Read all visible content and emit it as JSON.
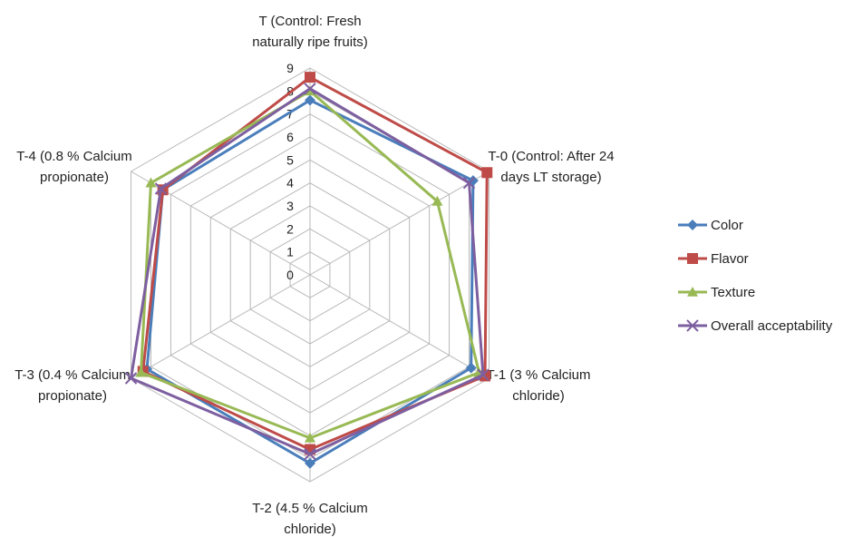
{
  "chart_data": {
    "type": "radar",
    "title": "",
    "categories": [
      [
        "T (Control: Fresh",
        "naturally ripe fruits)"
      ],
      [
        "T-0 (Control: After 24",
        "days LT storage)"
      ],
      [
        "T-1 (3 % Calcium",
        "chloride)"
      ],
      [
        "T-2 (4.5 % Calcium",
        "chloride)"
      ],
      [
        "T-3 (0.4 % Calcium",
        "propionate)"
      ],
      [
        "T-4 (0.8 % Calcium",
        "propionate)"
      ]
    ],
    "ticks": [
      "0",
      "1",
      "2",
      "3",
      "4",
      "5",
      "6",
      "7",
      "8",
      "9"
    ],
    "rlim": [
      0,
      9
    ],
    "grid": true,
    "legend_position": "right",
    "series": [
      {
        "name": "Color",
        "color": "#4a7ebb",
        "marker": "diamond",
        "values": [
          7.6,
          8.2,
          8.1,
          8.2,
          8.2,
          7.4
        ]
      },
      {
        "name": "Flavor",
        "color": "#be4b48",
        "marker": "square",
        "values": [
          8.6,
          8.9,
          8.8,
          7.6,
          8.4,
          7.4
        ]
      },
      {
        "name": "Texture",
        "color": "#98b954",
        "marker": "triangle",
        "values": [
          8.0,
          6.4,
          8.5,
          7.1,
          8.5,
          8.0
        ]
      },
      {
        "name": "Overall acceptability",
        "color": "#7d5fa0",
        "marker": "x",
        "values": [
          8.1,
          8.0,
          8.7,
          7.8,
          9.0,
          7.5
        ]
      }
    ]
  }
}
